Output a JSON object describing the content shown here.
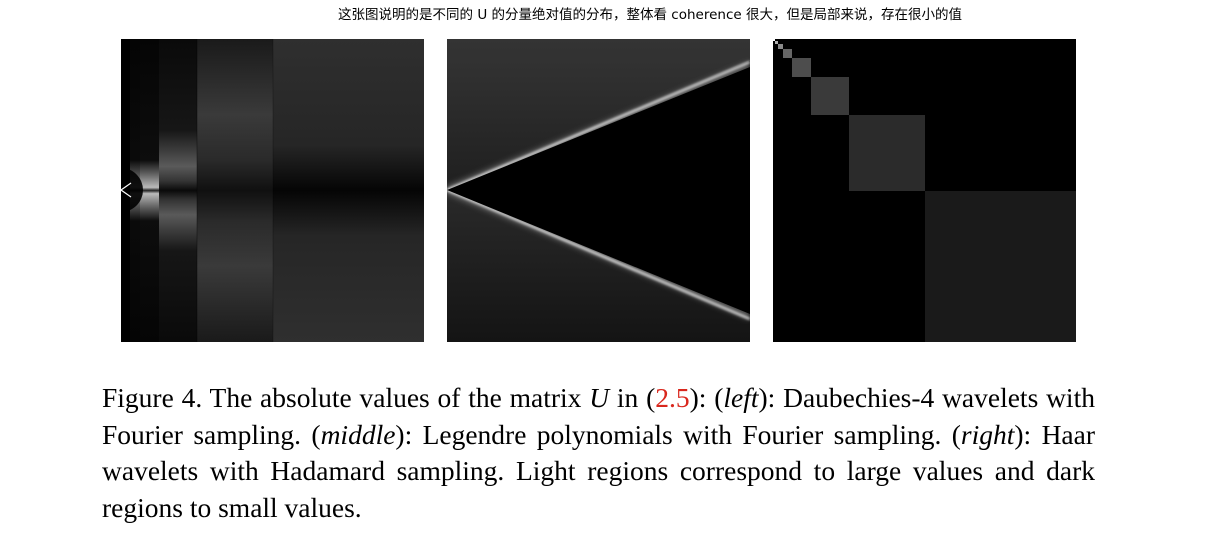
{
  "annotation": "这张图说明的是不同的 U 的分量绝对值的分布，整体看 coherence 很大，但是局部来说，存在很小的值",
  "caption": {
    "figure_label": "Figure 4.",
    "intro": "The absolute values of the matrix",
    "matrix_symbol": "U",
    "in_word": "in",
    "equation_ref": "2.5",
    "left_label": "left",
    "left_desc": "Daubechies-4 wavelets with Fourier sampling.",
    "middle_label": "middle",
    "middle_desc": "Legendre polynomials with Fourier sampling.",
    "right_label": "right",
    "right_desc": "Haar wavelets with Hadamard sampling.",
    "closing": "Light regions correspond to large values and dark regions to small values."
  },
  "panels": [
    {
      "position": "left",
      "content": "Daubechies-4 wavelets with Fourier sampling"
    },
    {
      "position": "middle",
      "content": "Legendre polynomials with Fourier sampling"
    },
    {
      "position": "right",
      "content": "Haar wavelets with Hadamard sampling"
    }
  ]
}
